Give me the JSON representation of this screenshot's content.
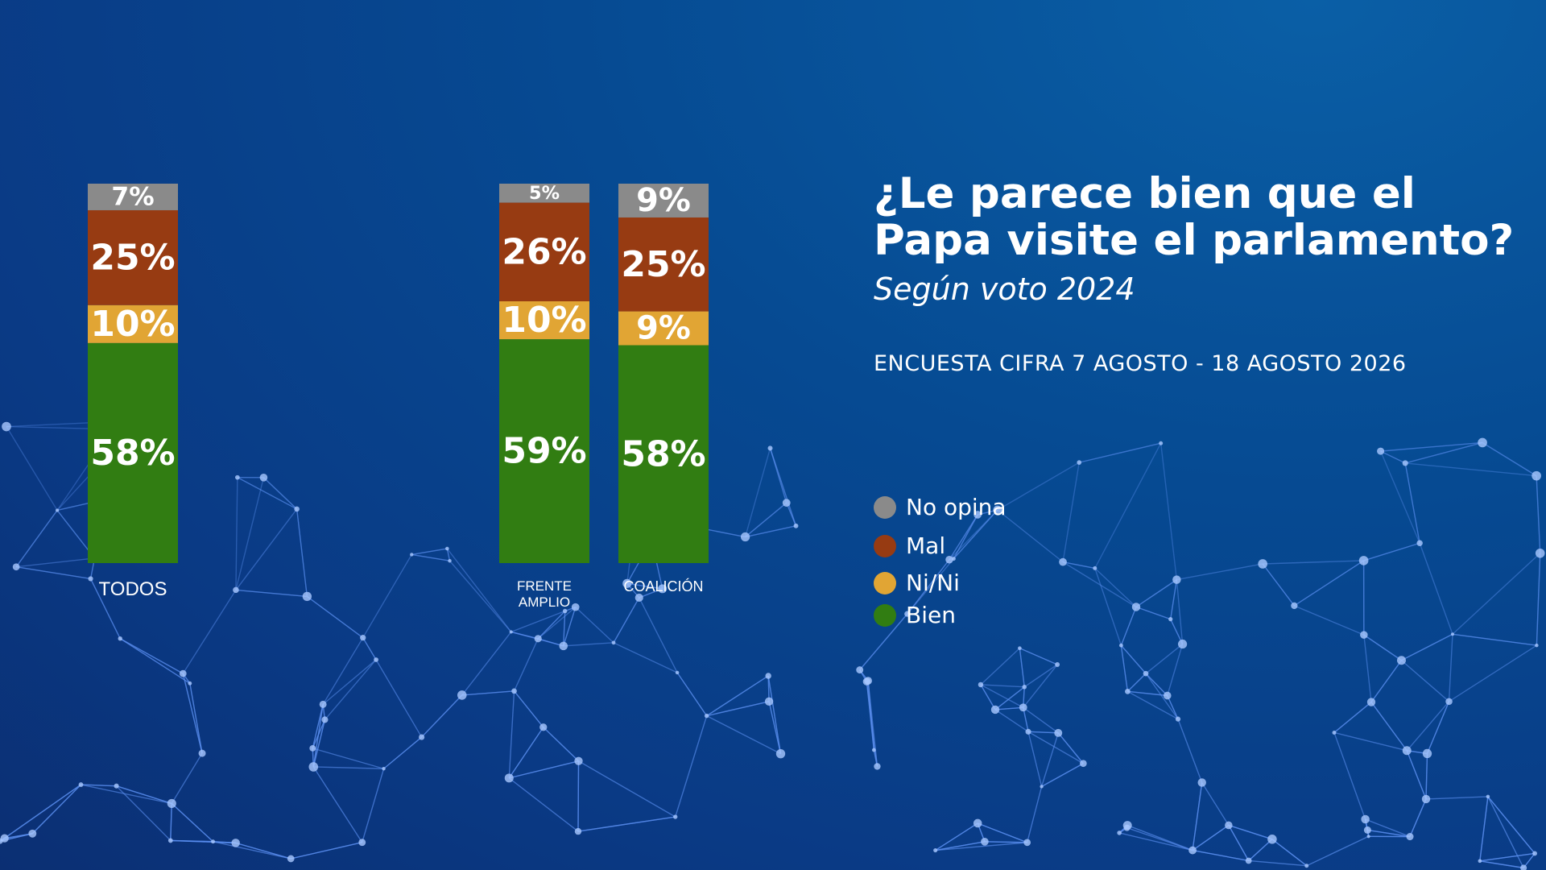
{
  "chart_data": {
    "type": "stacked-bar",
    "title": "¿Le parece bien que el Papa visite el parlamento?",
    "subtitle": "Según voto 2024",
    "note": "ENCUESTA CIFRA 7 AGOSTO - 18 AGOSTO 2026",
    "categories": [
      "TODOS",
      "FRENTE AMPLIO",
      "COALICIÓN"
    ],
    "series": [
      {
        "name": "Bien",
        "color": "#317d12",
        "values": [
          58,
          59,
          58
        ],
        "value_labels": [
          "58%",
          "59%",
          "58%"
        ]
      },
      {
        "name": "Ni/Ni",
        "color": "#e1a534",
        "values": [
          10,
          10,
          9
        ],
        "value_labels": [
          "10%",
          "10%",
          "9%"
        ]
      },
      {
        "name": "Mal",
        "color": "#973b12",
        "values": [
          25,
          26,
          25
        ],
        "value_labels": [
          "25%",
          "26%",
          "25%"
        ]
      },
      {
        "name": "No opina",
        "color": "#8a8a8a",
        "values": [
          7,
          5,
          9
        ],
        "value_labels": [
          "7%",
          "5%",
          "9%"
        ]
      }
    ]
  }
}
